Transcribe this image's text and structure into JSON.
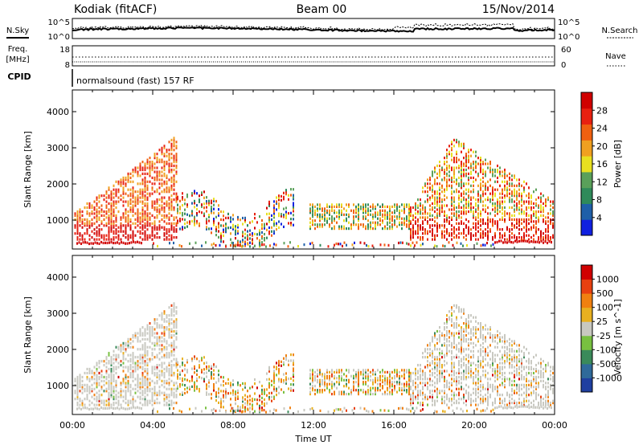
{
  "header": {
    "station": "Kodiak (fitACF)",
    "beam": "Beam 00",
    "date": "15/Nov/2014"
  },
  "noise_panel": {
    "left_label": "N.Sky",
    "left_ticks": [
      "10^5",
      "10^0"
    ],
    "right_label": "N.Search",
    "right_ticks": [
      "10^5",
      "10^0"
    ]
  },
  "freq_panel": {
    "left_label_1": "Freq.",
    "left_label_2": "[MHz]",
    "left_ticks": [
      "18",
      "8"
    ],
    "right_label": "Nave",
    "right_ticks": [
      "60",
      "0"
    ]
  },
  "cpid_panel": {
    "label": "CPID",
    "program": "normalsound (fast) 157 RF"
  },
  "colors": {
    "power_scale": [
      "#1020e0",
      "#1f5fa8",
      "#2f8a5a",
      "#5aa05a",
      "#e8e020",
      "#f0a020",
      "#f06010",
      "#e82010",
      "#d00000"
    ],
    "velocity_scale": [
      "#1f3fa0",
      "#2f6a9a",
      "#3a8a5a",
      "#78c040",
      "#c8c8c0",
      "#e8b020",
      "#f08010",
      "#e84010",
      "#d00000"
    ],
    "ground_scatter": "#c8c8c0"
  },
  "chart_data": [
    {
      "type": "heatmap",
      "name": "power",
      "ylabel": "Slant Range [km]",
      "yticks": [
        1000,
        2000,
        3000,
        4000
      ],
      "ylim": [
        200,
        4600
      ],
      "xlim": [
        0,
        24
      ],
      "colorbar_label": "Power [dB]",
      "colorbar_ticks": [
        "28",
        "24",
        "20",
        "16",
        "12",
        "8",
        "4"
      ],
      "colorbar_range": [
        0,
        32
      ]
    },
    {
      "type": "heatmap",
      "name": "velocity",
      "ylabel": "Slant Range [km]",
      "yticks": [
        1000,
        2000,
        3000,
        4000
      ],
      "ylim": [
        200,
        4600
      ],
      "xlim": [
        0,
        24
      ],
      "xlabel": "Time UT",
      "xticks": [
        "00:00",
        "04:00",
        "08:00",
        "12:00",
        "16:00",
        "20:00",
        "00:00"
      ],
      "colorbar_label": "Velocity [m s^-1]",
      "colorbar_ticks": [
        "1000",
        "500",
        "100",
        "25",
        "-25",
        "-100",
        "-500",
        "-1000"
      ]
    }
  ]
}
